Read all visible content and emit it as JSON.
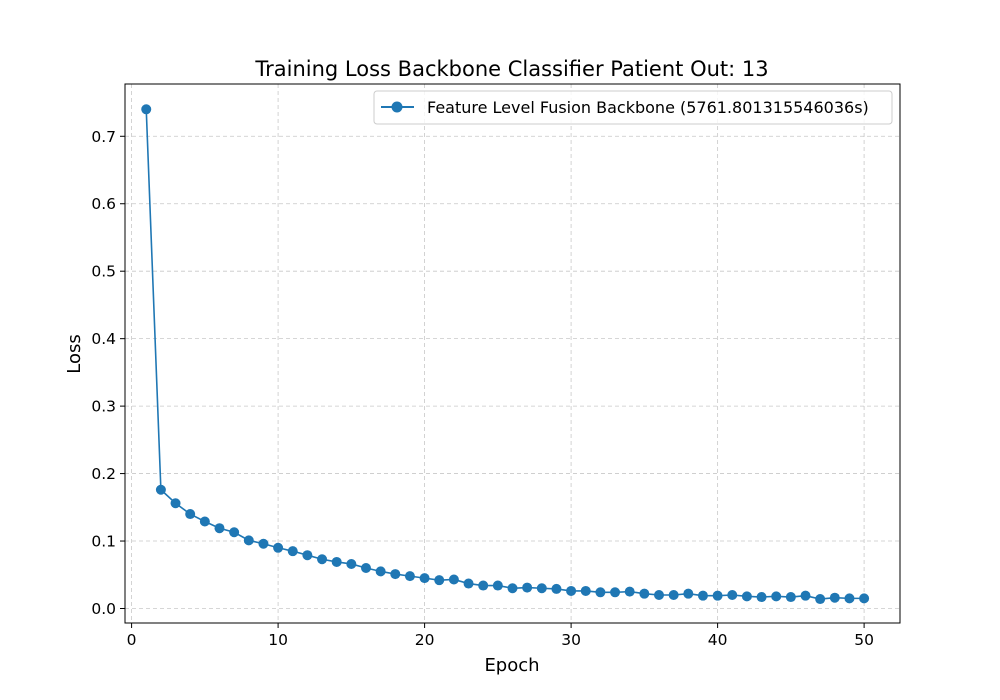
{
  "chart_data": {
    "type": "line",
    "title": "Training Loss Backbone Classifier Patient Out: 13",
    "xlabel": "Epoch",
    "ylabel": "Loss",
    "xlim": [
      -0.45,
      52.45
    ],
    "ylim": [
      -0.0215,
      0.7775
    ],
    "xticks": [
      0,
      10,
      20,
      30,
      40,
      50
    ],
    "yticks": [
      0.0,
      0.1,
      0.2,
      0.3,
      0.4,
      0.5,
      0.6,
      0.7
    ],
    "xtick_labels": [
      "0",
      "10",
      "20",
      "30",
      "40",
      "50"
    ],
    "ytick_labels": [
      "0.0",
      "0.1",
      "0.2",
      "0.3",
      "0.4",
      "0.5",
      "0.6",
      "0.7"
    ],
    "grid": true,
    "legend_position": "top-right",
    "series_color": "#1f77b4",
    "series": [
      {
        "name": "Feature Level Fusion Backbone (5761.801315546036s)",
        "x": [
          1,
          2,
          3,
          4,
          5,
          6,
          7,
          8,
          9,
          10,
          11,
          12,
          13,
          14,
          15,
          16,
          17,
          18,
          19,
          20,
          21,
          22,
          23,
          24,
          25,
          26,
          27,
          28,
          29,
          30,
          31,
          32,
          33,
          34,
          35,
          36,
          37,
          38,
          39,
          40,
          41,
          42,
          43,
          44,
          45,
          46,
          47,
          48,
          49,
          50
        ],
        "values": [
          0.74,
          0.176,
          0.156,
          0.14,
          0.129,
          0.119,
          0.113,
          0.101,
          0.096,
          0.09,
          0.085,
          0.079,
          0.073,
          0.069,
          0.066,
          0.06,
          0.055,
          0.051,
          0.048,
          0.045,
          0.042,
          0.043,
          0.037,
          0.034,
          0.034,
          0.03,
          0.031,
          0.03,
          0.029,
          0.026,
          0.026,
          0.024,
          0.024,
          0.025,
          0.022,
          0.02,
          0.02,
          0.022,
          0.019,
          0.019,
          0.02,
          0.018,
          0.017,
          0.018,
          0.017,
          0.019,
          0.014,
          0.016,
          0.015,
          0.015
        ]
      }
    ]
  }
}
